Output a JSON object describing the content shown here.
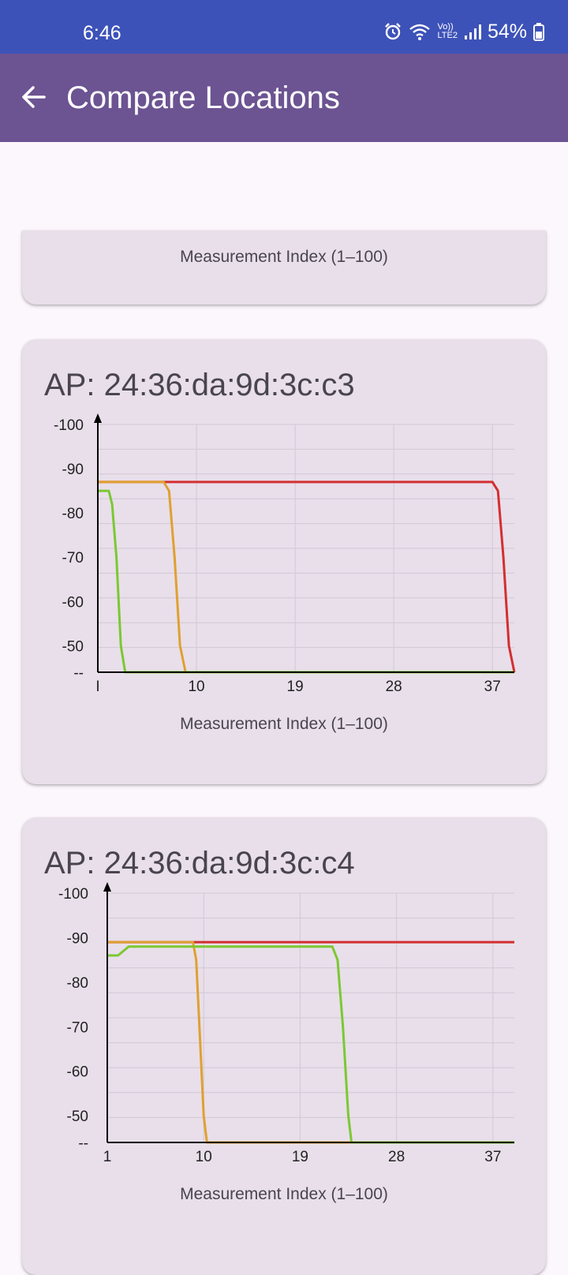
{
  "status_bar": {
    "time": "6:46",
    "battery": "54%",
    "network_label": "LTE2",
    "volte_label": "Vo))"
  },
  "app_bar": {
    "title": "Compare Locations"
  },
  "partial_card": {
    "xlabel": "Measurement Index (1–100)"
  },
  "charts": [
    {
      "title": "AP: 24:36:da:9d:3c:c3",
      "xlabel": "Measurement Index (1–100)",
      "yticks": [
        "-100",
        "-90",
        "-80",
        "-70",
        "-60",
        "-50",
        "--"
      ],
      "xticks": [
        "I",
        "10",
        "19",
        "28",
        "37"
      ]
    },
    {
      "title": "AP: 24:36:da:9d:3c:c4",
      "xlabel": "Measurement Index (1–100)",
      "yticks": [
        "-100",
        "-90",
        "-80",
        "-70",
        "-60",
        "-50",
        "--"
      ],
      "xticks": [
        "1",
        "10",
        "19",
        "28",
        "37"
      ]
    }
  ],
  "chart_data": [
    {
      "type": "line",
      "title": "AP: 24:36:da:9d:3c:c3",
      "xlabel": "Measurement Index (1–100)",
      "ylabel": "",
      "xlim": [
        1,
        39
      ],
      "ylim": [
        -44,
        -100
      ],
      "grid": true,
      "series": [
        {
          "color": "#D32F2F",
          "x": [
            1,
            37,
            37.5,
            38,
            38.5,
            39
          ],
          "y": [
            -87,
            -87,
            -85,
            -70,
            -50,
            -44
          ]
        },
        {
          "color": "#E0A030",
          "x": [
            1,
            7,
            7.5,
            8,
            8.5,
            9,
            39
          ],
          "y": [
            -87,
            -87,
            -85,
            -70,
            -50,
            -44,
            -44
          ]
        },
        {
          "color": "#7CC832",
          "x": [
            1,
            2,
            2.3,
            2.7,
            3.1,
            3.5,
            39
          ],
          "y": [
            -85,
            -85,
            -82,
            -70,
            -50,
            -44,
            -44
          ]
        }
      ]
    },
    {
      "type": "line",
      "title": "AP: 24:36:da:9d:3c:c4",
      "xlabel": "Measurement Index (1–100)",
      "ylabel": "",
      "xlim": [
        1,
        39
      ],
      "ylim": [
        -44,
        -100
      ],
      "grid": true,
      "series": [
        {
          "color": "#D32F2F",
          "x": [
            1,
            39
          ],
          "y": [
            -89,
            -89
          ]
        },
        {
          "color": "#E0A030",
          "x": [
            1,
            9,
            9.3,
            9.6,
            10,
            10.3,
            39
          ],
          "y": [
            -89,
            -89,
            -85,
            -70,
            -50,
            -44,
            -44
          ]
        },
        {
          "color": "#7CC832",
          "x": [
            1,
            2,
            3,
            22,
            22.5,
            23,
            23.5,
            23.8,
            39
          ],
          "y": [
            -86,
            -86,
            -88,
            -88,
            -85,
            -70,
            -50,
            -44,
            -44
          ]
        }
      ]
    }
  ]
}
